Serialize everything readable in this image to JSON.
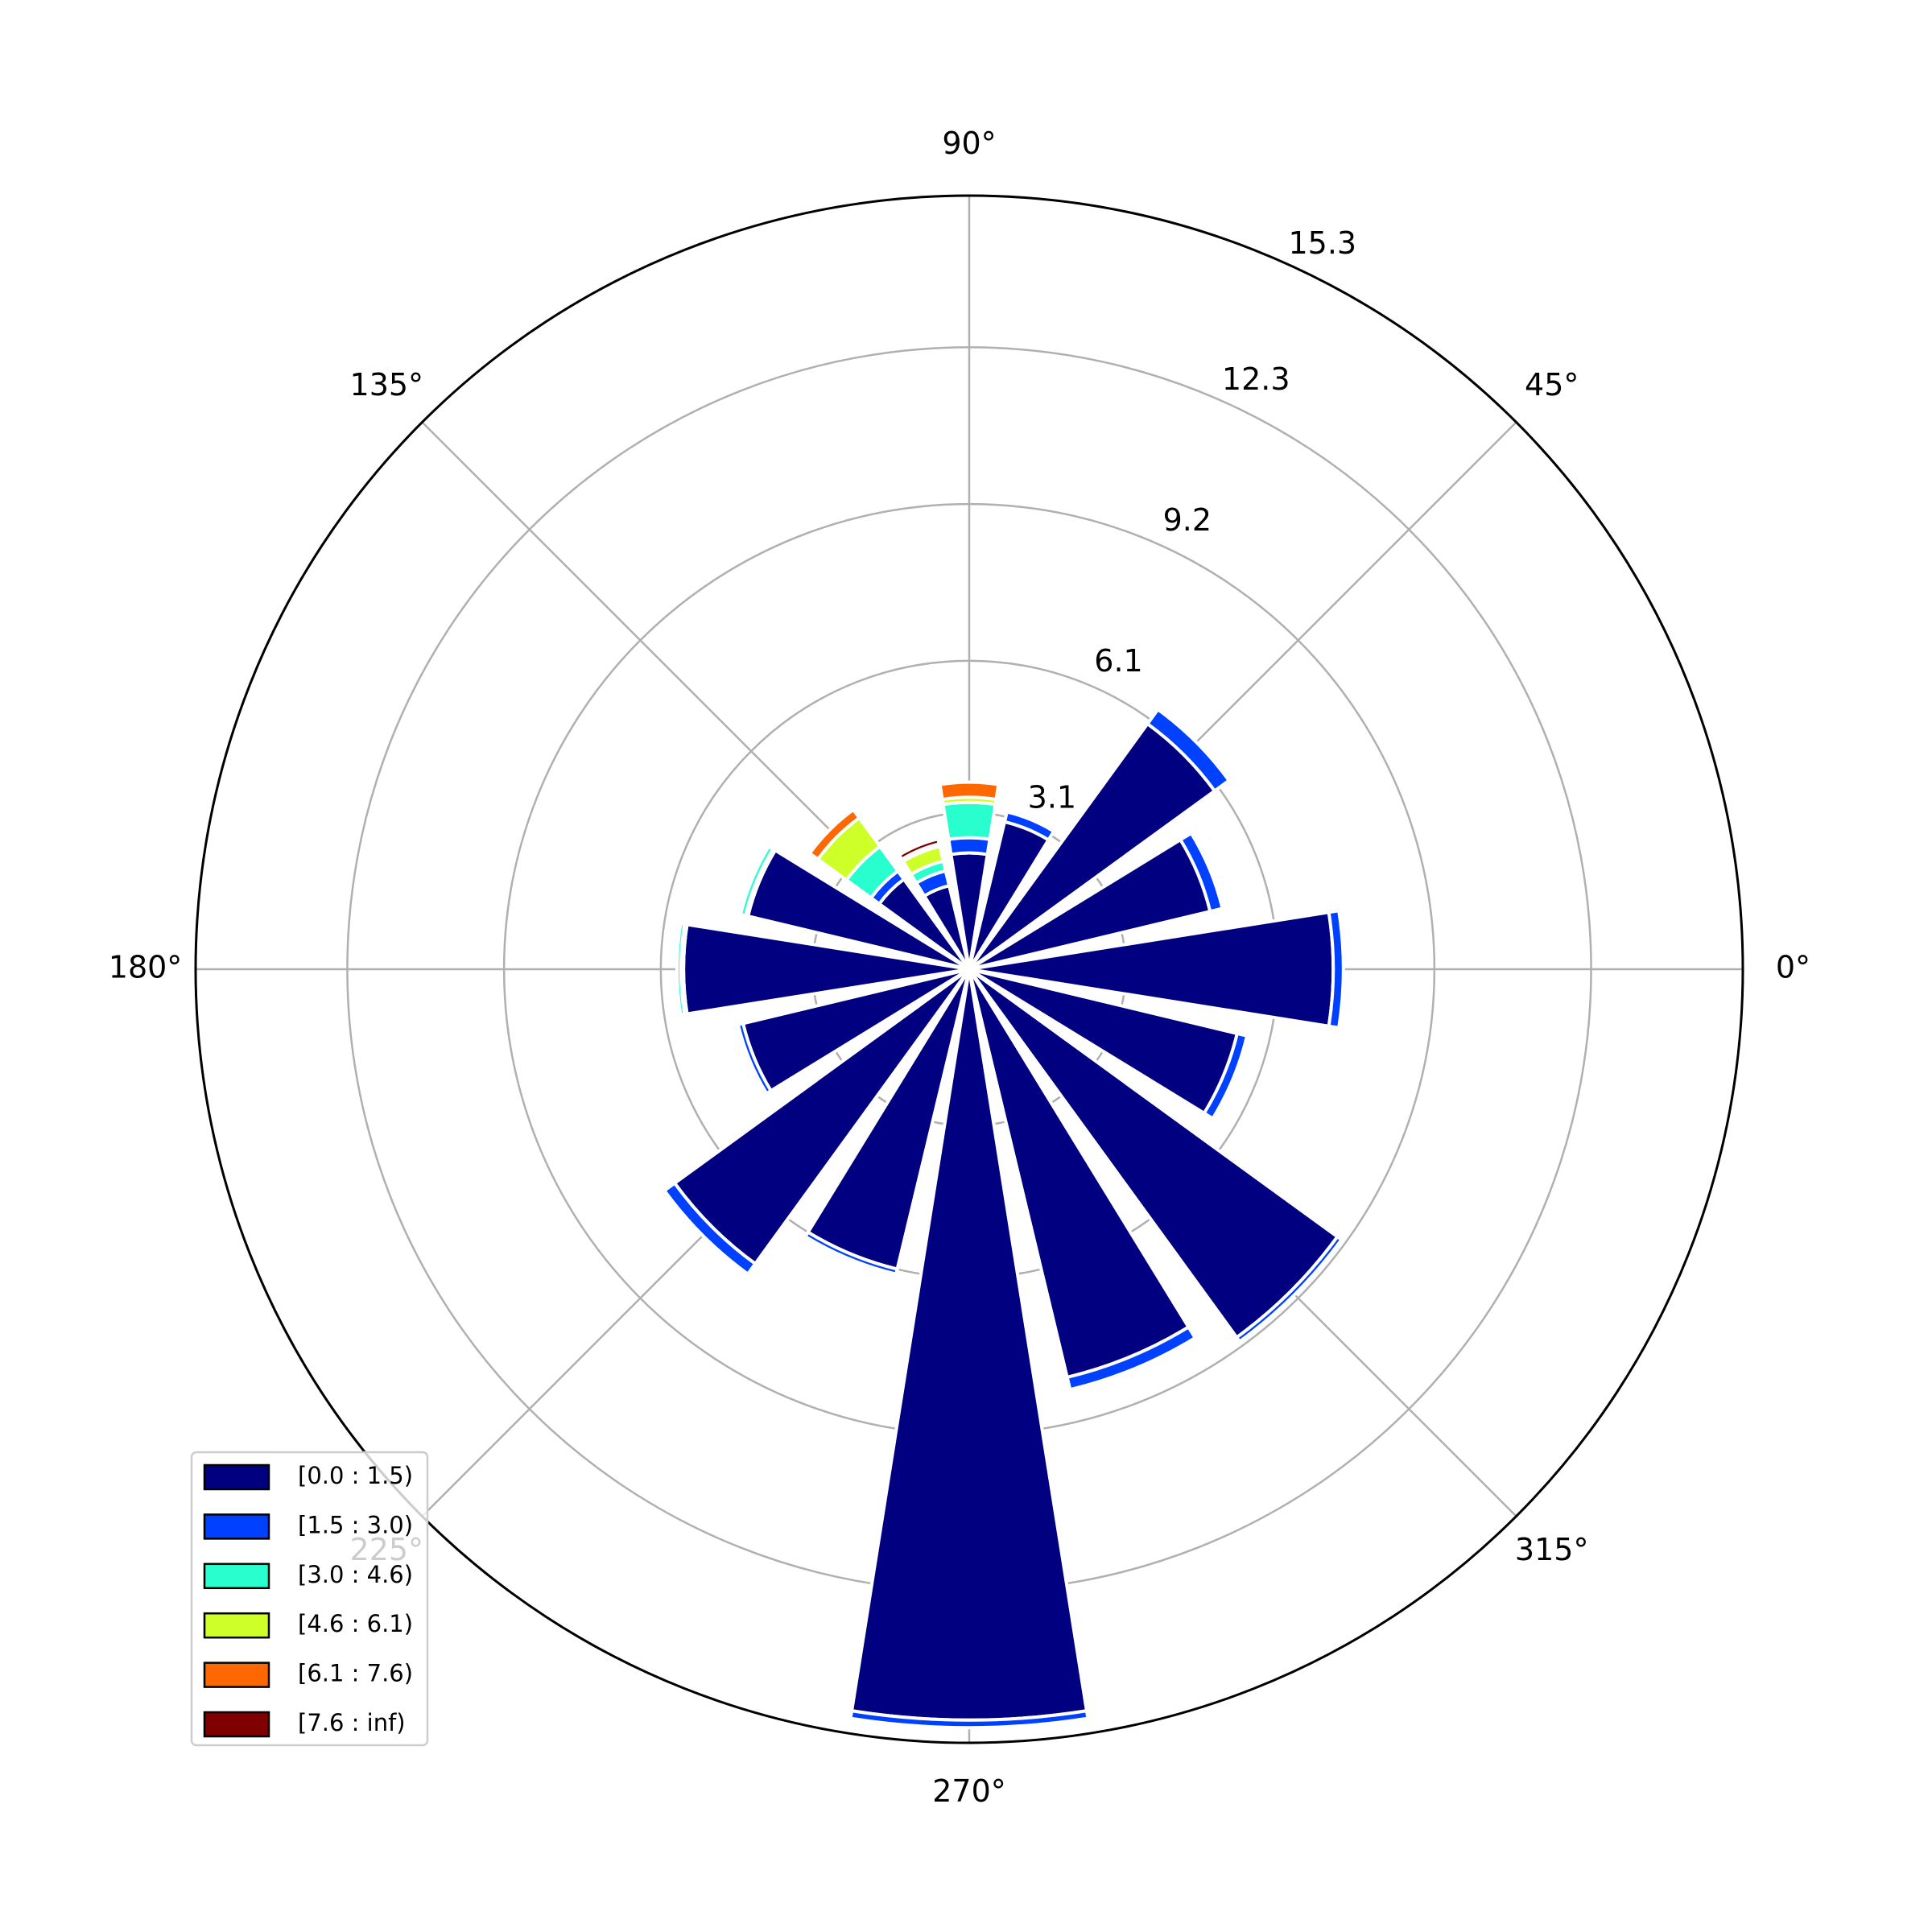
{
  "chart_data": {
    "type": "windrose",
    "x": [
      0,
      22.5,
      45,
      67.5,
      90,
      112.5,
      135,
      157.5,
      180,
      202.5,
      225,
      247.5,
      270,
      292.5,
      315,
      337.5
    ],
    "series": [
      {
        "name": "[0.0 : 1.5)",
        "color": "#000080",
        "values": [
          7.2,
          4.9,
          6.0,
          3.0,
          2.3,
          1.7,
          2.2,
          4.5,
          5.65,
          4.6,
          7.2,
          6.1,
          14.85,
          8.3,
          9.0,
          5.45
        ]
      },
      {
        "name": "[1.5 : 3.0)",
        "color": "#0040ff",
        "values": [
          0.2,
          0.25,
          0.35,
          0.2,
          0.3,
          0.3,
          0.2,
          0.05,
          0.05,
          0.1,
          0.25,
          0.1,
          0.15,
          0.25,
          0.1,
          0.2
        ]
      },
      {
        "name": "[3.0 : 4.6)",
        "color": "#29ffce",
        "values": [
          0,
          0,
          0,
          0,
          0.7,
          0.2,
          0.6,
          0.1,
          0.08,
          0,
          0,
          0,
          0,
          0,
          0,
          0
        ]
      },
      {
        "name": "[4.6 : 6.1)",
        "color": "#ceff29",
        "values": [
          0,
          0,
          0,
          0,
          0.1,
          0.3,
          0.7,
          0,
          0,
          0,
          0,
          0,
          0,
          0,
          0,
          0
        ]
      },
      {
        "name": "[6.1 : 7.6)",
        "color": "#ff6800",
        "values": [
          0,
          0,
          0,
          0,
          0.3,
          0.05,
          0.2,
          0,
          0,
          0,
          0,
          0,
          0,
          0,
          0,
          0
        ]
      },
      {
        "name": "[7.6 : inf)",
        "color": "#800000",
        "values": [
          0,
          0,
          0,
          0,
          0,
          0.1,
          0,
          0,
          0,
          0,
          0,
          0,
          0,
          0,
          0,
          0
        ]
      }
    ],
    "xticks": [
      {
        "value": 0,
        "label": "0°"
      },
      {
        "value": 45,
        "label": "45°"
      },
      {
        "value": 90,
        "label": "90°"
      },
      {
        "value": 135,
        "label": "135°"
      },
      {
        "value": 180,
        "label": "180°"
      },
      {
        "value": 225,
        "label": "225°"
      },
      {
        "value": 270,
        "label": "270°"
      },
      {
        "value": 315,
        "label": "315°"
      }
    ],
    "ylim": [
      0,
      15.3
    ],
    "yticks": [
      3.1,
      6.1,
      9.2,
      12.3,
      15.3
    ],
    "grid": true,
    "legend": "lower left"
  }
}
